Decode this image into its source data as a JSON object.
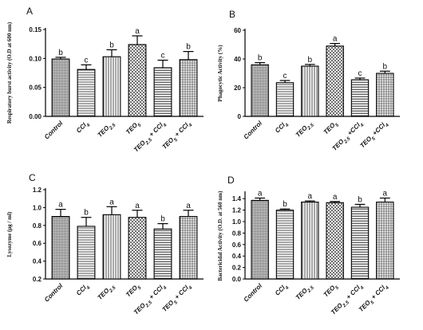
{
  "chart_data": [
    {
      "type": "bar",
      "panel_letter": "A",
      "ylabel": "Respiratory burst activity (O.D at 600 nm)",
      "ylim": [
        0,
        0.15
      ],
      "yticks": [
        "0.00",
        "0.05",
        "0.10",
        "0.15"
      ],
      "ytick_values": [
        0,
        0.05,
        0.1,
        0.15
      ],
      "categories": [
        {
          "base": "Control"
        },
        {
          "base": "CCl",
          "sub": "4"
        },
        {
          "base": "TEO",
          "sub": "2.5"
        },
        {
          "base": "TEO",
          "sub": "5"
        },
        {
          "base": "TEO",
          "sub": "2.5",
          "tail": " + CCl",
          "tail_sub": "4"
        },
        {
          "base": "TEO",
          "sub": "5",
          "tail": " + CCl",
          "tail_sub": "4"
        }
      ],
      "values": [
        0.099,
        0.081,
        0.103,
        0.124,
        0.084,
        0.098
      ],
      "errors": [
        0.003,
        0.008,
        0.012,
        0.015,
        0.013,
        0.014
      ],
      "letters": [
        "b",
        "c",
        "b",
        "a",
        "c",
        "b"
      ]
    },
    {
      "type": "bar",
      "panel_letter": "B",
      "ylabel": "Phagocytic Activity (%)",
      "ylim": [
        0,
        60
      ],
      "yticks": [
        "0",
        "20",
        "40",
        "60"
      ],
      "ytick_values": [
        0,
        20,
        40,
        60
      ],
      "categories": [
        {
          "base": "Control"
        },
        {
          "base": "CCl",
          "sub": "4"
        },
        {
          "base": "TEO",
          "sub": "2.5"
        },
        {
          "base": "TEO",
          "sub": "5"
        },
        {
          "base": "TEO",
          "sub": "2.5",
          "tail": " +CCl",
          "tail_sub": "4"
        },
        {
          "base": "TEO",
          "sub": "5",
          "tail": " +CCl",
          "tail_sub": "4"
        }
      ],
      "values": [
        36,
        23.5,
        35,
        49,
        25.5,
        30
      ],
      "errors": [
        1.5,
        1.5,
        1.2,
        1.8,
        1.2,
        1.5
      ],
      "letters": [
        "b",
        "c",
        "b",
        "a",
        "c",
        "b"
      ]
    },
    {
      "type": "bar",
      "panel_letter": "C",
      "ylabel": "Lysozyme (µg / ml)",
      "ylim": [
        0.2,
        1.2
      ],
      "yticks": [
        "0.2",
        "0.4",
        "0.6",
        "0.8",
        "1.0",
        "1.2"
      ],
      "ytick_values": [
        0.2,
        0.4,
        0.6,
        0.8,
        1.0,
        1.2
      ],
      "categories": [
        {
          "base": "Control"
        },
        {
          "base": "CCl",
          "sub": "4"
        },
        {
          "base": "TEO",
          "sub": "2.5"
        },
        {
          "base": "TEO",
          "sub": "5"
        },
        {
          "base": "TEO",
          "sub": "2.5",
          "tail": " + CCl",
          "tail_sub": "4"
        },
        {
          "base": "TEO",
          "sub": "5",
          "tail": " + CCl",
          "tail_sub": "4"
        }
      ],
      "values": [
        0.9,
        0.79,
        0.92,
        0.89,
        0.76,
        0.9
      ],
      "errors": [
        0.08,
        0.1,
        0.09,
        0.08,
        0.06,
        0.07
      ],
      "letters": [
        "a",
        "b",
        "a",
        "a",
        "b",
        "a"
      ]
    },
    {
      "type": "bar",
      "panel_letter": "D",
      "ylabel": "Bactericidal Activity (O.D. at 560 nm)",
      "ylim": [
        0,
        1.5
      ],
      "yticks": [
        "0.0",
        "0.2",
        "0.4",
        "0.6",
        "0.8",
        "1.0",
        "1.2",
        "1.4"
      ],
      "ytick_values": [
        0,
        0.2,
        0.4,
        0.6,
        0.8,
        1.0,
        1.2,
        1.4
      ],
      "categories": [
        {
          "base": "Control"
        },
        {
          "base": "CCl",
          "sub": "4"
        },
        {
          "base": "TEO",
          "sub": "2.5"
        },
        {
          "base": "TEO",
          "sub": "5"
        },
        {
          "base": "TEO",
          "sub": "2.5",
          "tail": " + CCl",
          "tail_sub": "4"
        },
        {
          "base": "TEO",
          "sub": "5",
          "tail": " + CCl",
          "tail_sub": "4"
        }
      ],
      "values": [
        1.37,
        1.2,
        1.34,
        1.33,
        1.25,
        1.34
      ],
      "errors": [
        0.04,
        0.02,
        0.02,
        0.02,
        0.05,
        0.07
      ],
      "letters": [
        "a",
        "b",
        "a",
        "a",
        "b",
        "a"
      ]
    }
  ]
}
